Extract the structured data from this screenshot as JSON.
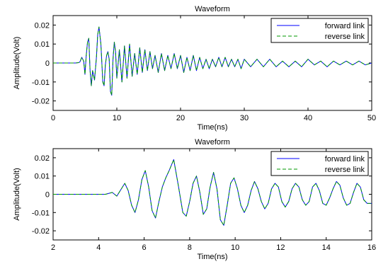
{
  "chart_data": [
    {
      "type": "line",
      "title": "Waveform",
      "xlabel": "Time(ns)",
      "ylabel": "Amplitude(Volt)",
      "xlim": [
        0,
        50
      ],
      "ylim": [
        -0.025,
        0.025
      ],
      "xticks": [
        0,
        10,
        20,
        30,
        40,
        50
      ],
      "xtick_labels": [
        "0",
        "10",
        "20",
        "30",
        "40",
        "50"
      ],
      "yticks": [
        -0.02,
        -0.01,
        0,
        0.01,
        0.02
      ],
      "ytick_labels": [
        "-0.02",
        "-0.01",
        "0",
        "0.01",
        "0.02"
      ],
      "grid": false,
      "legend": "top-right",
      "series": [
        {
          "name": "forward link",
          "color": "#0000ff",
          "style": "solid",
          "x": [
            0,
            1,
            2,
            3,
            3.5,
            4,
            4.2,
            4.5,
            4.8,
            5.0,
            5.2,
            5.4,
            5.6,
            5.8,
            6.0,
            6.2,
            6.5,
            6.8,
            7.0,
            7.2,
            7.5,
            7.8,
            8.0,
            8.2,
            8.4,
            8.6,
            8.8,
            9.0,
            9.2,
            9.4,
            9.6,
            9.8,
            10.0,
            10.4,
            10.8,
            11.2,
            11.6,
            12.0,
            12.4,
            12.8,
            13.2,
            13.6,
            14.0,
            14.4,
            14.8,
            15.2,
            15.6,
            16.0,
            16.5,
            17.0,
            17.5,
            18.0,
            18.5,
            19.0,
            19.5,
            20.0,
            20.5,
            21.0,
            21.5,
            22.0,
            22.5,
            23.0,
            23.5,
            24.0,
            24.5,
            25.0,
            25.5,
            26.0,
            26.5,
            27.0,
            27.5,
            28.0,
            28.5,
            29.0,
            29.5,
            30.0,
            31.0,
            32.0,
            33.0,
            34.0,
            35.0,
            36.0,
            37.0,
            38.0,
            39.0,
            40.0,
            41.0,
            42.0,
            43.0,
            44.0,
            45.0,
            46.0,
            47.0,
            48.0,
            49.0,
            50.0
          ],
          "y": [
            0,
            0,
            0,
            0,
            0,
            0.0002,
            0.0005,
            0.003,
            0.001,
            -0.006,
            0.004,
            0.011,
            0.013,
            -0.004,
            -0.012,
            -0.004,
            -0.009,
            0.003,
            0.015,
            0.019,
            0.01,
            -0.01,
            -0.012,
            -0.001,
            0.004,
            0.006,
            0.002,
            -0.015,
            -0.017,
            0.002,
            0.011,
            0.006,
            -0.008,
            0.007,
            -0.01,
            0.009,
            -0.008,
            0.01,
            -0.007,
            0.005,
            -0.006,
            0.008,
            -0.005,
            0.007,
            -0.004,
            0.006,
            -0.003,
            0.004,
            -0.005,
            0.005,
            -0.004,
            0.004,
            -0.003,
            0.005,
            -0.003,
            0.004,
            -0.005,
            0.003,
            -0.004,
            0.004,
            -0.004,
            0.003,
            -0.003,
            0.002,
            -0.003,
            0.002,
            -0.002,
            0.003,
            -0.002,
            0.003,
            -0.002,
            0.002,
            -0.002,
            0.002,
            -0.003,
            0.002,
            -0.002,
            0.002,
            -0.002,
            0.002,
            -0.002,
            0.001,
            -0.002,
            0.001,
            -0.002,
            0.002,
            -0.001,
            0.001,
            -0.002,
            0.001,
            -0.001,
            0.001,
            -0.001,
            0.001,
            -0.001,
            0
          ]
        },
        {
          "name": "reverse link",
          "color": "#009900",
          "style": "dashed",
          "x": [
            0,
            1,
            2,
            3,
            3.5,
            4,
            4.2,
            4.5,
            4.8,
            5.0,
            5.2,
            5.4,
            5.6,
            5.8,
            6.0,
            6.2,
            6.5,
            6.8,
            7.0,
            7.2,
            7.5,
            7.8,
            8.0,
            8.2,
            8.4,
            8.6,
            8.8,
            9.0,
            9.2,
            9.4,
            9.6,
            9.8,
            10.0,
            10.4,
            10.8,
            11.2,
            11.6,
            12.0,
            12.4,
            12.8,
            13.2,
            13.6,
            14.0,
            14.4,
            14.8,
            15.2,
            15.6,
            16.0,
            16.5,
            17.0,
            17.5,
            18.0,
            18.5,
            19.0,
            19.5,
            20.0,
            20.5,
            21.0,
            21.5,
            22.0,
            22.5,
            23.0,
            23.5,
            24.0,
            24.5,
            25.0,
            25.5,
            26.0,
            26.5,
            27.0,
            27.5,
            28.0,
            28.5,
            29.0,
            29.5,
            30.0,
            31.0,
            32.0,
            33.0,
            34.0,
            35.0,
            36.0,
            37.0,
            38.0,
            39.0,
            40.0,
            41.0,
            42.0,
            43.0,
            44.0,
            45.0,
            46.0,
            47.0,
            48.0,
            49.0,
            50.0
          ],
          "y": [
            0,
            0,
            0,
            0,
            0,
            0.0002,
            0.0005,
            0.003,
            0.001,
            -0.006,
            0.004,
            0.011,
            0.013,
            -0.004,
            -0.012,
            -0.004,
            -0.009,
            0.003,
            0.015,
            0.019,
            0.01,
            -0.01,
            -0.012,
            -0.001,
            0.004,
            0.006,
            0.002,
            -0.015,
            -0.017,
            0.002,
            0.011,
            0.006,
            -0.008,
            0.007,
            -0.01,
            0.009,
            -0.008,
            0.01,
            -0.007,
            0.005,
            -0.006,
            0.008,
            -0.005,
            0.007,
            -0.004,
            0.006,
            -0.003,
            0.004,
            -0.005,
            0.005,
            -0.004,
            0.004,
            -0.003,
            0.005,
            -0.003,
            0.004,
            -0.005,
            0.003,
            -0.004,
            0.004,
            -0.004,
            0.003,
            -0.003,
            0.002,
            -0.003,
            0.002,
            -0.002,
            0.003,
            -0.002,
            0.003,
            -0.002,
            0.002,
            -0.002,
            0.002,
            -0.003,
            0.002,
            -0.002,
            0.002,
            -0.002,
            0.002,
            -0.002,
            0.001,
            -0.002,
            0.001,
            -0.002,
            0.002,
            -0.001,
            0.001,
            -0.002,
            0.001,
            -0.001,
            0.001,
            -0.001,
            0.001,
            -0.001,
            0
          ]
        }
      ]
    },
    {
      "type": "line",
      "title": "Waveform",
      "xlabel": "Time(ns)",
      "ylabel": "Amplitude(Volt)",
      "xlim": [
        2,
        16
      ],
      "ylim": [
        -0.025,
        0.025
      ],
      "xticks": [
        2,
        4,
        6,
        8,
        10,
        12,
        14,
        16
      ],
      "xtick_labels": [
        "2",
        "4",
        "6",
        "8",
        "10",
        "12",
        "14",
        "16"
      ],
      "yticks": [
        -0.02,
        -0.01,
        0,
        0.01,
        0.02
      ],
      "ytick_labels": [
        "-0.02",
        "-0.01",
        "0",
        "0.01",
        "0.02"
      ],
      "grid": false,
      "legend": "top-right",
      "series": [
        {
          "name": "forward link",
          "color": "#0000ff",
          "style": "solid",
          "x": [
            2.0,
            3.0,
            4.0,
            4.3,
            4.6,
            4.8,
            5.0,
            5.15,
            5.3,
            5.45,
            5.6,
            5.75,
            5.9,
            6.05,
            6.2,
            6.35,
            6.5,
            6.65,
            6.8,
            6.95,
            7.1,
            7.3,
            7.5,
            7.7,
            7.85,
            8.0,
            8.15,
            8.3,
            8.45,
            8.6,
            8.75,
            8.9,
            9.05,
            9.2,
            9.35,
            9.5,
            9.65,
            9.8,
            9.95,
            10.1,
            10.25,
            10.4,
            10.55,
            10.7,
            10.85,
            11.0,
            11.15,
            11.3,
            11.45,
            11.6,
            11.75,
            11.9,
            12.05,
            12.2,
            12.35,
            12.5,
            12.65,
            12.8,
            12.95,
            13.1,
            13.25,
            13.4,
            13.55,
            13.7,
            13.85,
            14.0,
            14.15,
            14.3,
            14.45,
            14.6,
            14.75,
            14.9,
            15.05,
            15.2,
            15.35,
            15.5,
            15.65,
            15.8,
            16.0
          ],
          "y": [
            0,
            0,
            0,
            0,
            0.001,
            -0.001,
            0.003,
            0.006,
            0.002,
            -0.006,
            -0.01,
            -0.003,
            0.008,
            0.013,
            0.004,
            -0.009,
            -0.013,
            -0.004,
            0.004,
            0.009,
            0.013,
            0.019,
            0.005,
            -0.01,
            -0.012,
            -0.004,
            0.006,
            0.01,
            0.001,
            -0.011,
            -0.008,
            0.004,
            0.012,
            0.003,
            -0.014,
            -0.017,
            -0.006,
            0.006,
            0.009,
            0.003,
            -0.006,
            -0.01,
            -0.006,
            0.002,
            0.007,
            0.003,
            -0.004,
            -0.008,
            -0.005,
            0.003,
            0.006,
            0.004,
            -0.004,
            -0.007,
            -0.004,
            0.003,
            0.006,
            0.004,
            -0.003,
            -0.006,
            -0.004,
            0.004,
            0.006,
            0.002,
            -0.005,
            -0.006,
            -0.002,
            0.003,
            0.007,
            0.005,
            -0.002,
            -0.006,
            -0.005,
            0.001,
            0.006,
            0.004,
            -0.003,
            -0.005,
            -0.005
          ]
        },
        {
          "name": "reverse link",
          "color": "#009900",
          "style": "dashed",
          "x": [
            2.0,
            3.0,
            4.0,
            4.3,
            4.6,
            4.8,
            5.0,
            5.15,
            5.3,
            5.45,
            5.6,
            5.75,
            5.9,
            6.05,
            6.2,
            6.35,
            6.5,
            6.65,
            6.8,
            6.95,
            7.1,
            7.3,
            7.5,
            7.7,
            7.85,
            8.0,
            8.15,
            8.3,
            8.45,
            8.6,
            8.75,
            8.9,
            9.05,
            9.2,
            9.35,
            9.5,
            9.65,
            9.8,
            9.95,
            10.1,
            10.25,
            10.4,
            10.55,
            10.7,
            10.85,
            11.0,
            11.15,
            11.3,
            11.45,
            11.6,
            11.75,
            11.9,
            12.05,
            12.2,
            12.35,
            12.5,
            12.65,
            12.8,
            12.95,
            13.1,
            13.25,
            13.4,
            13.55,
            13.7,
            13.85,
            14.0,
            14.15,
            14.3,
            14.45,
            14.6,
            14.75,
            14.9,
            15.05,
            15.2,
            15.35,
            15.5,
            15.65,
            15.8,
            16.0
          ],
          "y": [
            0,
            0,
            0,
            0,
            0.001,
            -0.001,
            0.003,
            0.006,
            0.002,
            -0.006,
            -0.01,
            -0.003,
            0.008,
            0.013,
            0.004,
            -0.009,
            -0.013,
            -0.004,
            0.004,
            0.009,
            0.013,
            0.019,
            0.005,
            -0.01,
            -0.012,
            -0.004,
            0.006,
            0.01,
            0.001,
            -0.011,
            -0.008,
            0.004,
            0.012,
            0.003,
            -0.014,
            -0.017,
            -0.006,
            0.006,
            0.009,
            0.003,
            -0.006,
            -0.01,
            -0.006,
            0.002,
            0.007,
            0.003,
            -0.004,
            -0.008,
            -0.005,
            0.003,
            0.006,
            0.004,
            -0.004,
            -0.007,
            -0.004,
            0.003,
            0.006,
            0.004,
            -0.003,
            -0.006,
            -0.004,
            0.004,
            0.006,
            0.002,
            -0.005,
            -0.006,
            -0.002,
            0.003,
            0.007,
            0.005,
            -0.002,
            -0.006,
            -0.005,
            0.001,
            0.006,
            0.004,
            -0.003,
            -0.005,
            -0.005
          ]
        }
      ]
    }
  ]
}
